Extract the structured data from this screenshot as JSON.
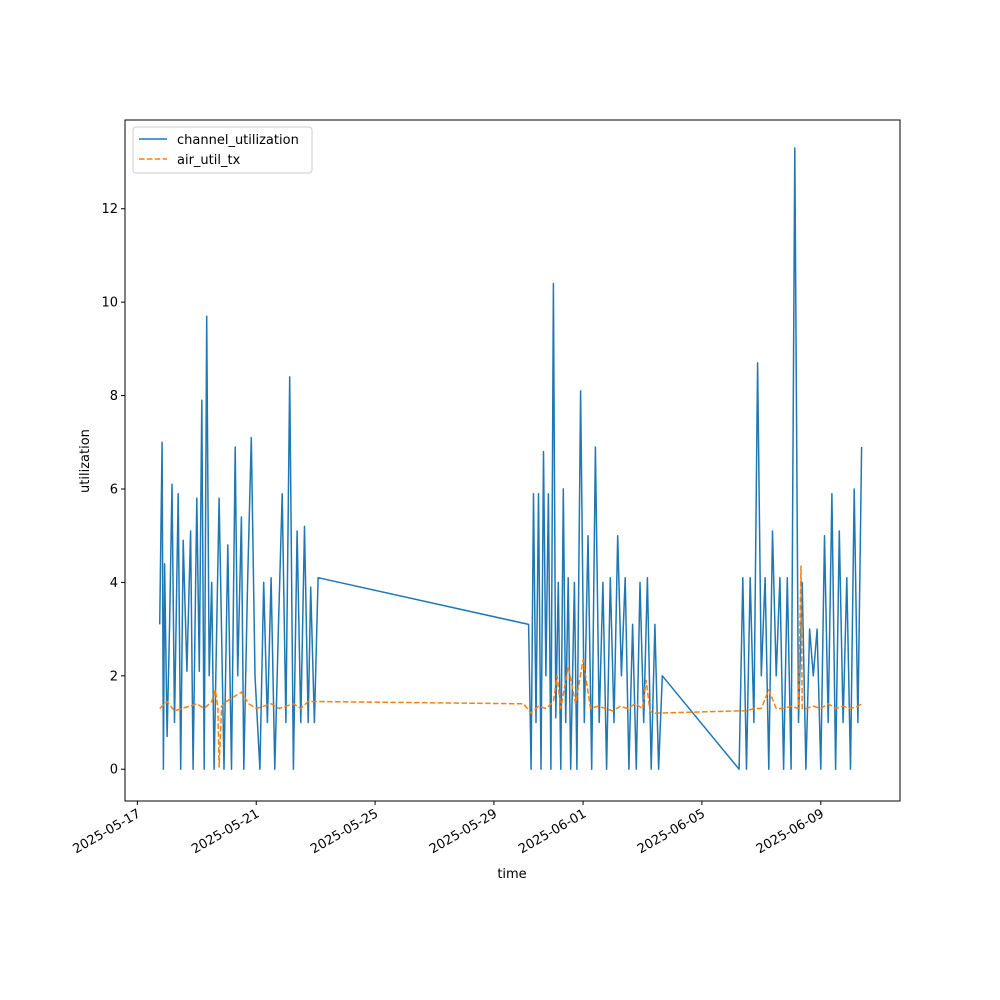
{
  "chart_data": {
    "type": "line",
    "xlabel": "time",
    "ylabel": "utilization",
    "xlim": [
      "2025-05-16T14:00",
      "2025-06-11T16:00"
    ],
    "ylim": [
      -0.68,
      13.9
    ],
    "x_ticks": [
      "2025-05-17",
      "2025-05-21",
      "2025-05-25",
      "2025-05-29",
      "2025-06-01",
      "2025-06-05",
      "2025-06-09"
    ],
    "y_ticks": [
      0,
      2,
      4,
      6,
      8,
      10,
      12
    ],
    "y_tick_labels": [
      "0",
      "2",
      "4",
      "6",
      "8",
      "10",
      "12"
    ],
    "grid": false,
    "legend": "top-left",
    "series": [
      {
        "name": "channel_utilization",
        "color": "#1f77b4",
        "dash": "solid",
        "x": [
          "2025-05-17T18:00",
          "2025-05-17T20:00",
          "2025-05-17T21:00",
          "2025-05-17T22:00",
          "2025-05-18T00:00",
          "2025-05-18T02:00",
          "2025-05-18T04:00",
          "2025-05-18T06:00",
          "2025-05-18T09:00",
          "2025-05-18T11:00",
          "2025-05-18T13:00",
          "2025-05-18T16:00",
          "2025-05-18T19:00",
          "2025-05-18T21:00",
          "2025-05-19T00:00",
          "2025-05-19T02:00",
          "2025-05-19T04:00",
          "2025-05-19T06:00",
          "2025-05-19T08:00",
          "2025-05-19T10:00",
          "2025-05-19T12:00",
          "2025-05-19T14:00",
          "2025-05-19T18:00",
          "2025-05-19T20:00",
          "2025-05-19T22:00",
          "2025-05-20T01:00",
          "2025-05-20T04:00",
          "2025-05-20T07:00",
          "2025-05-20T09:00",
          "2025-05-20T12:00",
          "2025-05-20T14:00",
          "2025-05-20T17:00",
          "2025-05-20T20:00",
          "2025-05-20T23:00",
          "2025-05-21T03:00",
          "2025-05-21T06:00",
          "2025-05-21T09:00",
          "2025-05-21T12:00",
          "2025-05-21T15:00",
          "2025-05-21T18:00",
          "2025-05-21T21:00",
          "2025-05-22T00:00",
          "2025-05-22T03:00",
          "2025-05-22T06:00",
          "2025-05-22T09:00",
          "2025-05-22T12:00",
          "2025-05-22T15:00",
          "2025-05-22T18:00",
          "2025-05-22T20:00",
          "2025-05-22T23:00",
          "2025-05-23T02:00",
          "2025-05-30T04:00",
          "2025-05-30T06:00",
          "2025-05-30T08:00",
          "2025-05-30T10:00",
          "2025-05-30T12:00",
          "2025-05-30T14:00",
          "2025-05-30T16:00",
          "2025-05-30T18:00",
          "2025-05-30T20:00",
          "2025-05-30T22:00",
          "2025-05-31T00:00",
          "2025-05-31T02:00",
          "2025-05-31T04:00",
          "2025-05-31T06:00",
          "2025-05-31T08:00",
          "2025-05-31T10:00",
          "2025-05-31T12:00",
          "2025-05-31T14:00",
          "2025-05-31T17:00",
          "2025-05-31T19:00",
          "2025-05-31T22:00",
          "2025-06-01T01:00",
          "2025-06-01T04:00",
          "2025-06-01T07:00",
          "2025-06-01T10:00",
          "2025-06-01T13:00",
          "2025-06-01T16:00",
          "2025-06-01T19:00",
          "2025-06-01T22:00",
          "2025-06-02T01:00",
          "2025-06-02T04:00",
          "2025-06-02T07:00",
          "2025-06-02T10:00",
          "2025-06-02T13:00",
          "2025-06-02T16:00",
          "2025-06-02T19:00",
          "2025-06-02T22:00",
          "2025-06-03T01:00",
          "2025-06-03T04:00",
          "2025-06-03T07:00",
          "2025-06-03T10:00",
          "2025-06-03T13:00",
          "2025-06-03T16:00",
          "2025-06-06T06:00",
          "2025-06-06T09:00",
          "2025-06-06T12:00",
          "2025-06-06T15:00",
          "2025-06-06T18:00",
          "2025-06-06T21:00",
          "2025-06-07T00:00",
          "2025-06-07T03:00",
          "2025-06-07T06:00",
          "2025-06-07T09:00",
          "2025-06-07T12:00",
          "2025-06-07T15:00",
          "2025-06-07T18:00",
          "2025-06-07T21:00",
          "2025-06-08T00:00",
          "2025-06-08T03:00",
          "2025-06-08T06:00",
          "2025-06-08T09:00",
          "2025-06-08T12:00",
          "2025-06-08T15:00",
          "2025-06-08T18:00",
          "2025-06-08T21:00",
          "2025-06-09T00:00",
          "2025-06-09T03:00",
          "2025-06-09T06:00",
          "2025-06-09T09:00",
          "2025-06-09T12:00",
          "2025-06-09T15:00",
          "2025-06-09T18:00",
          "2025-06-09T21:00",
          "2025-06-10T00:00",
          "2025-06-10T03:00",
          "2025-06-10T06:00",
          "2025-06-10T09:00"
        ],
        "y": [
          3.1,
          7.0,
          0.0,
          4.4,
          0.7,
          3.1,
          6.1,
          1.0,
          5.9,
          0.0,
          4.9,
          2.1,
          5.1,
          0.0,
          5.8,
          2.1,
          7.9,
          0.0,
          9.7,
          2.0,
          4.0,
          0.0,
          5.8,
          2.9,
          0.0,
          4.8,
          0.0,
          6.9,
          2.0,
          5.4,
          0.0,
          4.0,
          7.1,
          2.0,
          0.0,
          4.0,
          1.0,
          4.1,
          0.0,
          3.1,
          5.9,
          1.0,
          8.4,
          0.0,
          5.1,
          1.0,
          5.2,
          1.0,
          3.9,
          1.0,
          4.1,
          3.1,
          0.0,
          5.9,
          1.0,
          5.9,
          0.0,
          6.8,
          2.0,
          5.9,
          0.0,
          10.4,
          1.1,
          4.0,
          0.0,
          6.0,
          1.0,
          4.1,
          0.0,
          4.0,
          0.0,
          8.1,
          1.0,
          5.0,
          0.0,
          6.9,
          1.0,
          4.0,
          0.0,
          4.1,
          1.0,
          5.0,
          2.0,
          4.1,
          0.0,
          3.1,
          0.0,
          4.0,
          1.0,
          4.1,
          0.0,
          3.1,
          0.0,
          2.0,
          0.0,
          4.1,
          0.0,
          4.1,
          1.0,
          8.7,
          2.0,
          4.1,
          0.0,
          5.1,
          2.0,
          4.1,
          0.0,
          4.1,
          0.0,
          13.3,
          1.0,
          4.0,
          0.0,
          3.0,
          2.0,
          3.0,
          0.0,
          5.0,
          1.0,
          5.9,
          0.0,
          5.1,
          1.0,
          4.1,
          0.0,
          6.0,
          1.0,
          6.9
        ]
      },
      {
        "name": "air_util_tx",
        "color": "#ff7f0e",
        "dash": "dashed",
        "x": [
          "2025-05-17T18:00",
          "2025-05-18T00:00",
          "2025-05-18T06:00",
          "2025-05-18T12:00",
          "2025-05-18T18:00",
          "2025-05-19T00:00",
          "2025-05-19T06:00",
          "2025-05-19T12:00",
          "2025-05-19T15:00",
          "2025-05-19T17:00",
          "2025-05-19T18:00",
          "2025-05-19T20:00",
          "2025-05-20T00:00",
          "2025-05-20T06:00",
          "2025-05-20T12:00",
          "2025-05-20T18:00",
          "2025-05-21T00:00",
          "2025-05-21T06:00",
          "2025-05-21T12:00",
          "2025-05-21T18:00",
          "2025-05-22T00:00",
          "2025-05-22T06:00",
          "2025-05-22T12:00",
          "2025-05-22T18:00",
          "2025-05-23T00:00",
          "2025-05-30T00:00",
          "2025-05-30T06:00",
          "2025-05-30T12:00",
          "2025-05-30T18:00",
          "2025-05-31T00:00",
          "2025-05-31T03:00",
          "2025-05-31T06:00",
          "2025-05-31T12:00",
          "2025-05-31T18:00",
          "2025-06-01T00:00",
          "2025-06-01T06:00",
          "2025-06-01T12:00",
          "2025-06-01T18:00",
          "2025-06-02T00:00",
          "2025-06-02T06:00",
          "2025-06-02T12:00",
          "2025-06-02T18:00",
          "2025-06-03T00:00",
          "2025-06-03T03:00",
          "2025-06-03T06:00",
          "2025-06-03T09:00",
          "2025-06-06T06:00",
          "2025-06-06T12:00",
          "2025-06-06T18:00",
          "2025-06-07T00:00",
          "2025-06-07T06:00",
          "2025-06-07T12:00",
          "2025-06-07T18:00",
          "2025-06-08T00:00",
          "2025-06-08T06:00",
          "2025-06-08T08:00",
          "2025-06-08T09:00",
          "2025-06-08T12:00",
          "2025-06-08T18:00",
          "2025-06-09T00:00",
          "2025-06-09T06:00",
          "2025-06-09T12:00",
          "2025-06-09T18:00",
          "2025-06-10T00:00",
          "2025-06-10T06:00",
          "2025-06-10T09:00"
        ],
        "y": [
          1.3,
          1.45,
          1.25,
          1.3,
          1.35,
          1.4,
          1.3,
          1.45,
          1.7,
          1.3,
          0.05,
          1.35,
          1.45,
          1.55,
          1.65,
          1.4,
          1.3,
          1.35,
          1.4,
          1.3,
          1.35,
          1.4,
          1.3,
          1.45,
          1.45,
          1.4,
          1.2,
          1.35,
          1.3,
          1.45,
          2.0,
          1.3,
          2.2,
          1.4,
          2.35,
          1.3,
          1.35,
          1.3,
          1.25,
          1.35,
          1.3,
          1.4,
          1.3,
          1.9,
          1.25,
          1.2,
          1.25,
          1.25,
          1.3,
          1.3,
          1.7,
          1.3,
          1.3,
          1.35,
          1.3,
          4.35,
          1.3,
          1.3,
          1.35,
          1.3,
          1.4,
          1.3,
          1.35,
          1.3,
          1.35,
          1.4
        ]
      }
    ]
  }
}
